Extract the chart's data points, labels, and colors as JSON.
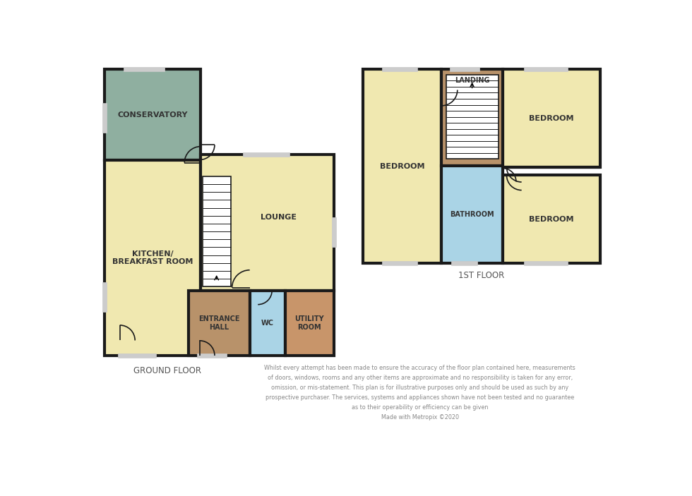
{
  "bg_color": "#ffffff",
  "wall_color": "#1a1a1a",
  "wall_lw": 3.0,
  "thin_lw": 1.2,
  "colors": {
    "cream": "#f0e8b0",
    "green": "#8fafa0",
    "blue": "#aad4e6",
    "brown": "#b8926a",
    "utility_brown": "#c8956a",
    "white": "#ffffff",
    "window": "#cccccc"
  },
  "disclaimer": "Whilst every attempt has been made to ensure the accuracy of the floor plan contained here, measurements\nof doors, windows, rooms and any other items are approximate and no responsibility is taken for any error,\nomission, or mis-statement. This plan is for illustrative purposes only and should be used as such by any\nprospective purchaser. The services, systems and appliances shown have not been tested and no guarantee\nas to their operability or efficiency can be given\nMade with Metropix ©2020",
  "ground_floor_label": "GROUND FLOOR",
  "first_floor_label": "1ST FLOOR"
}
